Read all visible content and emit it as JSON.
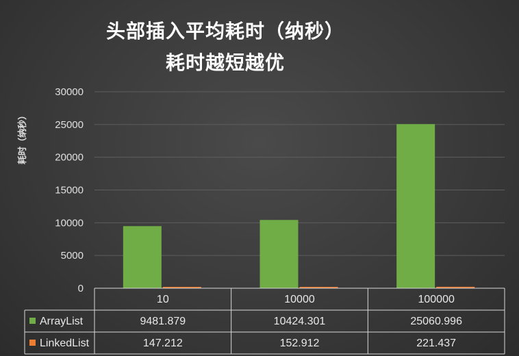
{
  "chart_data": {
    "type": "bar",
    "title": "头部插入平均耗时（纳秒）",
    "subtitle": "耗时越短越优",
    "xlabel": "",
    "ylabel": "耗时（纳秒）",
    "categories": [
      "10",
      "10000",
      "100000"
    ],
    "series": [
      {
        "name": "ArrayList",
        "values": [
          "9481.879",
          "10424.301",
          "25060.996"
        ],
        "color": "#70ad47"
      },
      {
        "name": "LinkedList",
        "values": [
          "147.212",
          "152.912",
          "221.437"
        ],
        "color": "#ed7d31"
      }
    ],
    "ylim": [
      0,
      30000
    ],
    "yticks": [
      "0",
      "5000",
      "10000",
      "15000",
      "20000",
      "25000",
      "30000"
    ],
    "grid": true,
    "legend": "data-table"
  }
}
